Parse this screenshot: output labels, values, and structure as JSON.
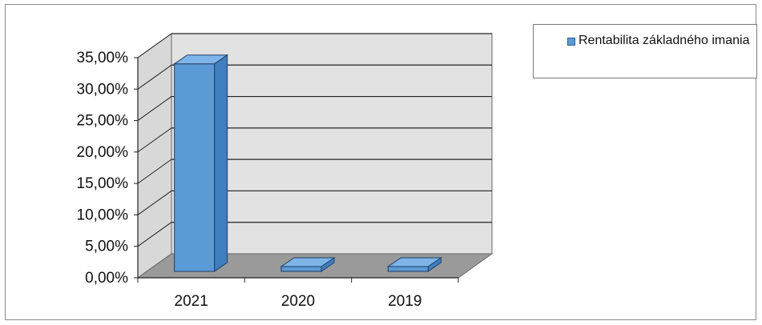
{
  "chart_data": {
    "type": "bar",
    "categories": [
      "2021",
      "2020",
      "2019"
    ],
    "series": [
      {
        "name": "Rentabilita základného imania",
        "values": [
          33.0,
          0.5,
          0.5
        ]
      }
    ],
    "ylim": [
      0,
      35
    ],
    "yticks": [
      "0,00%",
      "5,00%",
      "10,00%",
      "15,00%",
      "20,00%",
      "25,00%",
      "30,00%",
      "35,00%"
    ],
    "grid": true,
    "legend": "right",
    "three_d": true,
    "colors": {
      "bar_front": "#5b9bd5",
      "bar_side": "#3f7fc0",
      "bar_top": "#7fb4e8",
      "back_wall": "#e2e2e2",
      "side_wall": "#d8d8d8",
      "floor": "#9a9a9a"
    }
  }
}
